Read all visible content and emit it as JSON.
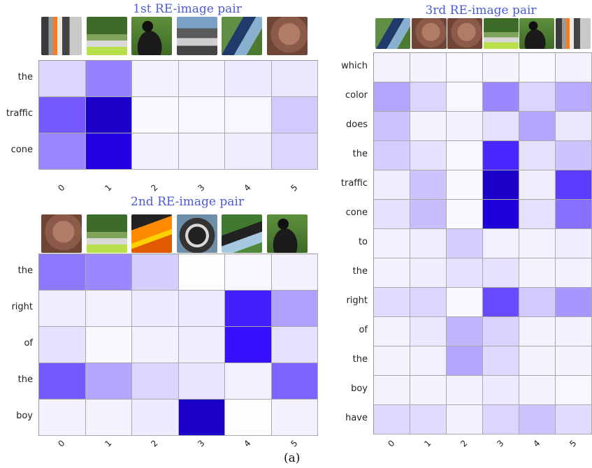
{
  "caption": "(a)",
  "colors": {
    "title": "#4a5ad8",
    "cell_scale_max": "#1f00ff",
    "cell_scale_dark": "#1a00c8"
  },
  "panels": [
    {
      "id": "pair1",
      "title": "1st RE-image pair",
      "thumbs": [
        "traffic-cones-street-thumb",
        "skater-cone-thumb",
        "boy-helmet-back-thumb",
        "skateboard-legs-thumb",
        "rider-motion-thumb",
        "skin-closeup-thumb"
      ],
      "rows": [
        "the",
        "traffic",
        "cone"
      ],
      "cols": [
        "0",
        "1",
        "2",
        "3",
        "4",
        "5"
      ],
      "values": [
        [
          0.14,
          0.42,
          0.05,
          0.05,
          0.07,
          0.08
        ],
        [
          0.55,
          1.0,
          0.02,
          0.03,
          0.03,
          0.18
        ],
        [
          0.4,
          0.93,
          0.05,
          0.04,
          0.06,
          0.14
        ]
      ]
    },
    {
      "id": "pair2",
      "title": "2nd RE-image pair",
      "thumbs": [
        "skin-closeup-thumb",
        "skater-cone-thumb",
        "orange-cones-thumb",
        "helmet-closeup-thumb",
        "rider-jump-thumb",
        "boy-helmet-back-thumb"
      ],
      "rows": [
        "the",
        "right",
        "of",
        "the",
        "boy"
      ],
      "cols": [
        "0",
        "1",
        "2",
        "3",
        "4",
        "5"
      ],
      "values": [
        [
          0.45,
          0.4,
          0.17,
          0.01,
          0.03,
          0.05
        ],
        [
          0.06,
          0.05,
          0.07,
          0.07,
          0.75,
          0.32
        ],
        [
          0.1,
          0.02,
          0.05,
          0.06,
          0.8,
          0.1
        ],
        [
          0.55,
          0.3,
          0.14,
          0.09,
          0.05,
          0.52
        ],
        [
          0.05,
          0.04,
          0.07,
          1.0,
          0.01,
          0.05
        ]
      ]
    },
    {
      "id": "pair3",
      "title": "3rd RE-image pair",
      "thumbs": [
        "rider-motion-thumb",
        "skin-closeup-thumb",
        "skin-closeup-thumb",
        "skater-cone-thumb",
        "boy-helmet-back-thumb",
        "traffic-cones-street-thumb"
      ],
      "rows": [
        "which",
        "color",
        "does",
        "the",
        "traffic",
        "cone",
        "to",
        "the",
        "right",
        "of",
        "the",
        "boy",
        "have"
      ],
      "cols": [
        "0",
        "1",
        "2",
        "3",
        "4",
        "5"
      ],
      "values": [
        [
          0.04,
          0.04,
          0.03,
          0.04,
          0.03,
          0.05
        ],
        [
          0.3,
          0.14,
          0.03,
          0.4,
          0.14,
          0.28
        ],
        [
          0.2,
          0.04,
          0.05,
          0.1,
          0.3,
          0.08
        ],
        [
          0.17,
          0.1,
          0.03,
          0.72,
          0.1,
          0.2
        ],
        [
          0.06,
          0.2,
          0.02,
          1.0,
          0.06,
          0.65
        ],
        [
          0.1,
          0.22,
          0.02,
          0.95,
          0.1,
          0.48
        ],
        [
          0.05,
          0.06,
          0.17,
          0.05,
          0.04,
          0.06
        ],
        [
          0.05,
          0.06,
          0.1,
          0.1,
          0.04,
          0.05
        ],
        [
          0.12,
          0.14,
          0.03,
          0.6,
          0.18,
          0.35
        ],
        [
          0.04,
          0.08,
          0.25,
          0.15,
          0.04,
          0.05
        ],
        [
          0.04,
          0.05,
          0.3,
          0.13,
          0.04,
          0.04
        ],
        [
          0.04,
          0.04,
          0.05,
          0.07,
          0.04,
          0.03
        ],
        [
          0.13,
          0.12,
          0.05,
          0.14,
          0.2,
          0.12
        ]
      ]
    }
  ]
}
